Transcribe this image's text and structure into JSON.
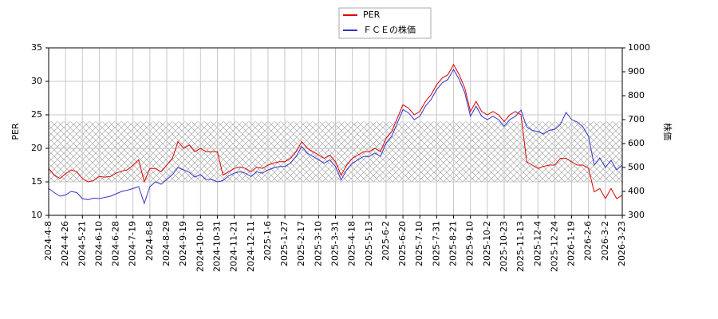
{
  "chart_data": {
    "type": "line",
    "categories": [
      "2024-4-8",
      null,
      null,
      "2024-4-26",
      null,
      null,
      "2024-5-21",
      null,
      null,
      "2024-6-10",
      null,
      null,
      "2024-6-28",
      null,
      null,
      "2024-7-19",
      null,
      null,
      "2024-8-8",
      null,
      null,
      "2024-8-29",
      null,
      null,
      "2024-9-19",
      null,
      null,
      "2024-10-10",
      null,
      null,
      "2024-10-31",
      null,
      null,
      "2024-11-21",
      null,
      null,
      "2024-12-11",
      null,
      null,
      "2025-1-6",
      null,
      null,
      "2025-1-27",
      null,
      null,
      "2025-2-17",
      null,
      null,
      "2025-3-10",
      null,
      null,
      "2025-3-31",
      null,
      null,
      "2025-4-18",
      null,
      null,
      "2025-5-13",
      null,
      null,
      "2025-6-2",
      null,
      null,
      "2025-6-20",
      null,
      null,
      "2025-7-10",
      null,
      null,
      "2025-7-31",
      null,
      null,
      "2025-8-21",
      null,
      null,
      "2025-9-10",
      null,
      null,
      "2025-10-2",
      null,
      null,
      "2025-10-23",
      null,
      null,
      "2025-11-13",
      null,
      null,
      "2025-12-4",
      null,
      null,
      "2025-12-24",
      null,
      null,
      "2026-1-19",
      null,
      null,
      "2026-2-6",
      null,
      null,
      "2026-3-2",
      null,
      null,
      "2026-3-23"
    ],
    "series": [
      {
        "name": "PER",
        "color": "#dd0000",
        "values": [
          17,
          16,
          15.5,
          16.2,
          16.8,
          16.5,
          15.5,
          15,
          15.2,
          15.8,
          15.7,
          15.8,
          16.3,
          16.6,
          16.8,
          17.5,
          18.3,
          15,
          17,
          17,
          16.5,
          17.5,
          18.5,
          21,
          20,
          20.5,
          19.5,
          20,
          19.5,
          19.5,
          19.5,
          16,
          16.5,
          17,
          17.2,
          17,
          16.5,
          17.2,
          17,
          17.5,
          17.8,
          18,
          18,
          18.5,
          19.5,
          21,
          20,
          19.5,
          19,
          18.5,
          19,
          18,
          16,
          17.5,
          18.5,
          19,
          19.5,
          19.5,
          20,
          19.5,
          21.5,
          22.5,
          24.5,
          26.5,
          26,
          25,
          25.5,
          27,
          28,
          29.5,
          30.5,
          31,
          32.5,
          31,
          29,
          25.5,
          27,
          25.5,
          25,
          25.5,
          25,
          24,
          25,
          25.5,
          25,
          18,
          17.5,
          17,
          17.3,
          17.5,
          17.5,
          18.5,
          18.5,
          18,
          17.5,
          17.5,
          17,
          13.5,
          14,
          12.5,
          14,
          12.5,
          13
        ]
      },
      {
        "name": "ＦＣＥの株価",
        "color": "#3333cc",
        "axis": "y2",
        "values": [
          412,
          395,
          380,
          385,
          400,
          395,
          370,
          365,
          372,
          370,
          375,
          380,
          390,
          400,
          405,
          412,
          420,
          350,
          420,
          440,
          430,
          450,
          470,
          500,
          490,
          480,
          460,
          470,
          450,
          450,
          440,
          445,
          465,
          476,
          482,
          476,
          462,
          482,
          476,
          490,
          498,
          504,
          504,
          518,
          546,
          588,
          560,
          546,
          532,
          518,
          532,
          504,
          448,
          490,
          518,
          532,
          546,
          546,
          560,
          546,
          602,
          630,
          686,
          742,
          728,
          700,
          714,
          756,
          784,
          826,
          854,
          868,
          910,
          868,
          812,
          714,
          756,
          714,
          700,
          714,
          700,
          672,
          700,
          714,
          740,
          670,
          655,
          650,
          640,
          655,
          660,
          680,
          730,
          700,
          690,
          670,
          630,
          510,
          540,
          500,
          530,
          490,
          510
        ]
      }
    ],
    "ylabel": "PER",
    "y2label": "株価",
    "ylim": [
      10,
      35
    ],
    "yticks": [
      10,
      15,
      20,
      25,
      30,
      35
    ],
    "y2lim": [
      300,
      1000
    ],
    "y2ticks": [
      300,
      400,
      500,
      600,
      700,
      800,
      900,
      1000
    ],
    "band": [
      15,
      24
    ],
    "grid": true,
    "legend": "top"
  }
}
